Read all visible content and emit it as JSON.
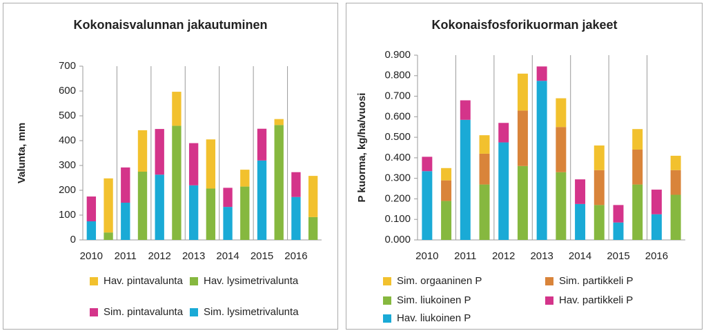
{
  "chart_data": [
    {
      "type": "bar",
      "stacked": true,
      "title": "Kokonaisvalunnan jakautuminen",
      "y_label": "Valunta, mm",
      "categories": [
        "2010",
        null,
        "2011",
        null,
        "2012",
        null,
        "2013",
        null,
        "2014",
        null,
        "2015",
        null,
        "2016",
        null
      ],
      "series": [
        {
          "name": "Hav. pintavalunta",
          "color": "#f2c12e",
          "values": [
            null,
            218,
            null,
            167,
            null,
            137,
            null,
            198,
            null,
            68,
            null,
            24,
            null,
            166
          ]
        },
        {
          "name": "Hav. lysimetrivalunta",
          "color": "#86b83f",
          "values": [
            null,
            30,
            null,
            275,
            null,
            460,
            null,
            207,
            null,
            215,
            null,
            463,
            null,
            92
          ]
        },
        {
          "name": "Sim. pintavalunta",
          "color": "#d4348a",
          "values": [
            100,
            null,
            142,
            null,
            184,
            null,
            170,
            null,
            77,
            null,
            128,
            null,
            100,
            null
          ]
        },
        {
          "name": "Sim. lysimetrivalunta",
          "color": "#1aaad6",
          "values": [
            75,
            null,
            150,
            null,
            263,
            null,
            220,
            null,
            133,
            null,
            320,
            null,
            173,
            null
          ]
        }
      ],
      "ylim": [
        0,
        700
      ],
      "yticks": [
        0,
        100,
        200,
        300,
        400,
        500,
        600,
        700
      ],
      "grid": false,
      "legend": "bottom"
    },
    {
      "type": "bar",
      "stacked": true,
      "title": "Kokonaisfosforikuorman jakeet",
      "y_label": "P kuorma, kg/ha/vuosi",
      "categories": [
        "2010",
        null,
        "2011",
        null,
        "2012",
        null,
        "2013",
        null,
        "2014",
        null,
        "2015",
        null,
        "2016",
        null
      ],
      "series": [
        {
          "name": "Sim. orgaaninen P",
          "color": "#f2c12e",
          "values": [
            null,
            0.06,
            null,
            0.09,
            null,
            0.18,
            null,
            0.14,
            null,
            0.12,
            null,
            0.1,
            null,
            0.07
          ]
        },
        {
          "name": "Sim. partikkeli P",
          "color": "#d9843a",
          "values": [
            null,
            0.1,
            null,
            0.15,
            null,
            0.27,
            null,
            0.22,
            null,
            0.17,
            null,
            0.17,
            null,
            0.12
          ]
        },
        {
          "name": "Sim. liukoinen P",
          "color": "#86b83f",
          "values": [
            null,
            0.19,
            null,
            0.27,
            null,
            0.36,
            null,
            0.33,
            null,
            0.17,
            null,
            0.27,
            null,
            0.22
          ]
        },
        {
          "name": "Hav. partikkeli P",
          "color": "#d4348a",
          "values": [
            0.07,
            null,
            0.095,
            null,
            0.095,
            null,
            0.07,
            null,
            0.12,
            null,
            0.085,
            null,
            0.12,
            null
          ]
        },
        {
          "name": "Hav. liukoinen P",
          "color": "#1aaad6",
          "values": [
            0.335,
            null,
            0.585,
            null,
            0.475,
            null,
            0.775,
            null,
            0.175,
            null,
            0.085,
            null,
            0.125,
            null
          ]
        }
      ],
      "ylim": [
        0,
        0.9
      ],
      "yticks": [
        {
          "value": 0,
          "label": "0.000"
        },
        {
          "value": 0.1,
          "label": "0.100"
        },
        {
          "value": 0.2,
          "label": "0.200"
        },
        {
          "value": 0.3,
          "label": "0.300"
        },
        {
          "value": 0.4,
          "label": "0.400"
        },
        {
          "value": 0.5,
          "label": "0.500"
        },
        {
          "value": 0.6,
          "label": "0.600"
        },
        {
          "value": 0.7,
          "label": "0.700"
        },
        {
          "value": 0.8,
          "label": "0.800"
        },
        {
          "value": 0.9,
          "label": "0.900"
        }
      ],
      "grid": false,
      "legend": "bottom"
    }
  ]
}
